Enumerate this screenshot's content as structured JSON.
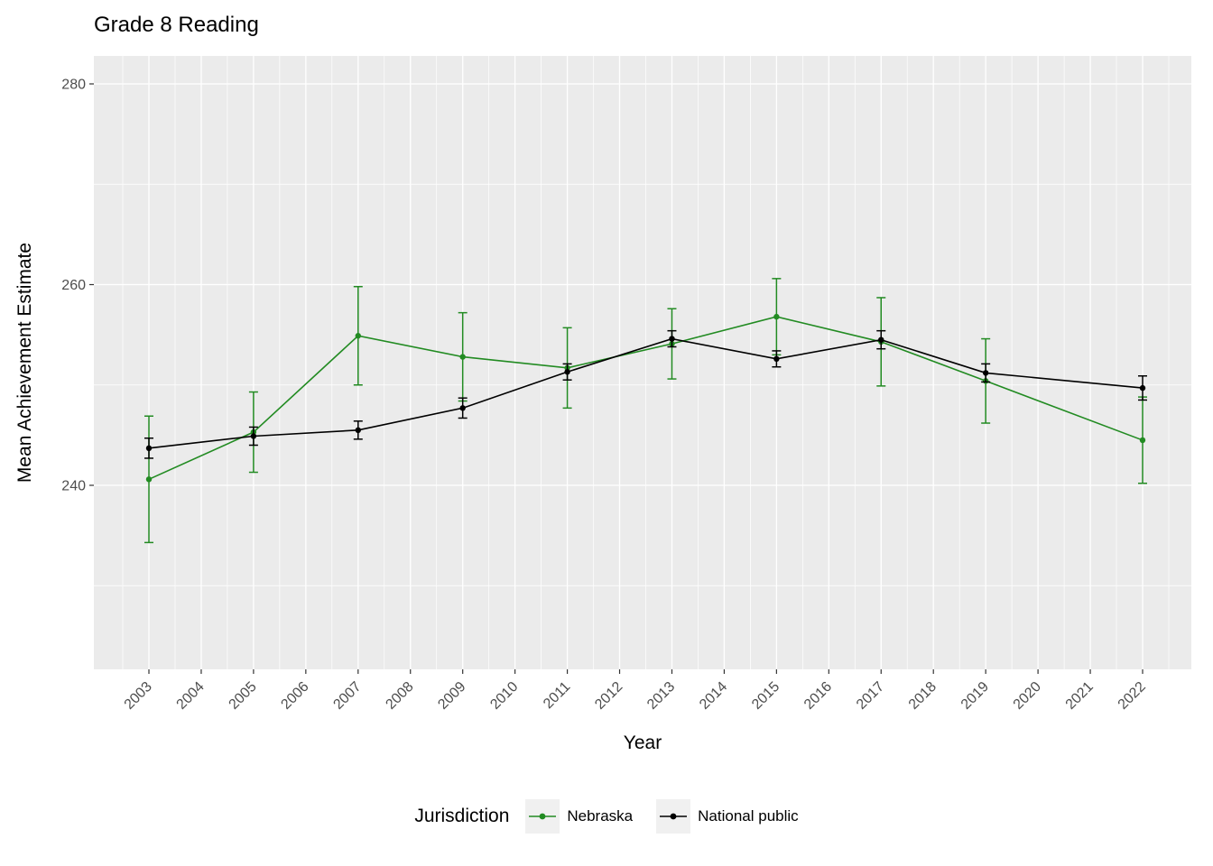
{
  "colors": {
    "panel_bg": "#EBEBEB",
    "grid_major": "#FFFFFF",
    "grid_minor": "#FFFFFF",
    "tick_mark": "#333333",
    "tick_label": "#4D4D4D",
    "text": "#000000",
    "legend_key_bg": "#F0F0F0",
    "nebraska": "#228B22",
    "national_public": "#000000"
  },
  "chart_data": {
    "type": "line",
    "title": "Grade 8 Reading",
    "xlabel": "Year",
    "ylabel": "Mean Achievement Estimate",
    "legend_title": "Jurisdiction",
    "legend_position": "bottom",
    "grid": true,
    "error_bars": true,
    "x_ticks": [
      2003,
      2004,
      2005,
      2006,
      2007,
      2008,
      2009,
      2010,
      2011,
      2012,
      2013,
      2014,
      2015,
      2016,
      2017,
      2018,
      2019,
      2020,
      2021,
      2022
    ],
    "y_ticks": [
      240,
      260,
      280
    ],
    "y_minor_ticks": [
      230,
      250,
      270
    ],
    "xlim": [
      2002.05,
      2022.95
    ],
    "ylim": [
      221.6,
      282.8
    ],
    "x": [
      2003,
      2005,
      2007,
      2009,
      2011,
      2013,
      2015,
      2017,
      2019,
      2022
    ],
    "series": [
      {
        "name": "Nebraska",
        "color": "#228B22",
        "marker": "circle",
        "values": [
          240.6,
          245.3,
          254.9,
          252.8,
          251.7,
          254.1,
          256.8,
          254.3,
          250.4,
          244.5
        ],
        "ci_low": [
          234.3,
          241.3,
          250.0,
          248.4,
          247.7,
          250.6,
          253.0,
          249.9,
          246.2,
          240.2
        ],
        "ci_high": [
          246.9,
          249.3,
          259.8,
          257.2,
          255.7,
          257.6,
          260.6,
          258.7,
          254.6,
          248.8
        ]
      },
      {
        "name": "National public",
        "color": "#000000",
        "marker": "circle",
        "values": [
          243.7,
          244.9,
          245.5,
          247.7,
          251.3,
          254.6,
          252.6,
          254.5,
          251.2,
          249.7
        ],
        "ci_low": [
          242.7,
          244.0,
          244.6,
          246.7,
          250.5,
          253.8,
          251.8,
          253.6,
          250.3,
          248.5
        ],
        "ci_high": [
          244.7,
          245.8,
          246.4,
          248.7,
          252.1,
          255.4,
          253.4,
          255.4,
          252.1,
          250.9
        ]
      }
    ]
  }
}
